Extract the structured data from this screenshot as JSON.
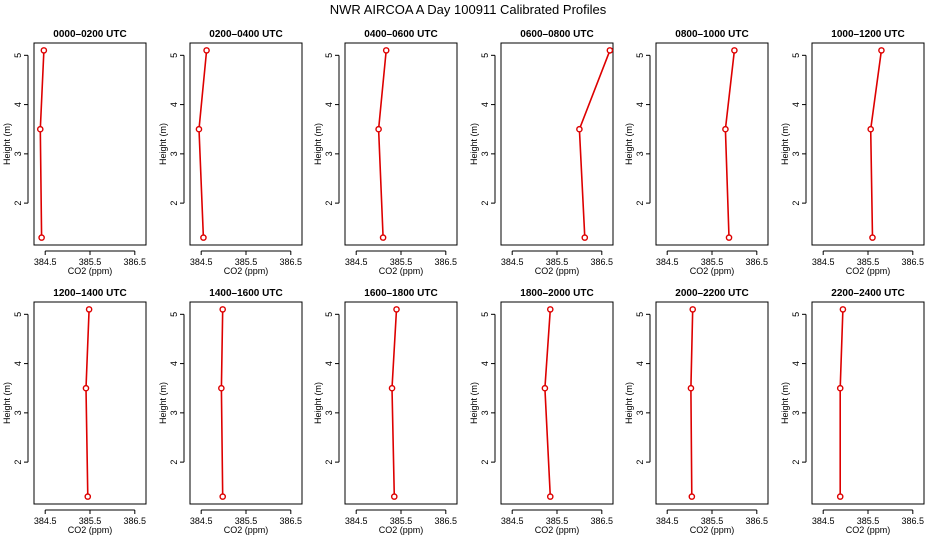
{
  "figure": {
    "title": "NWR AIRCOA A  Day 100911  Calibrated Profiles"
  },
  "style": {
    "line_color": "#dd0000",
    "point_color": "#dd0000",
    "axis_color": "#000000"
  },
  "chart_data": [
    {
      "type": "line",
      "title": "0000–0200 UTC",
      "xlabel": "CO2 (ppm)",
      "ylabel": "Height (m)",
      "xlim": [
        384.25,
        386.75
      ],
      "ylim": [
        1.15,
        5.25
      ],
      "xticks": [
        384.5,
        385.5,
        386.5
      ],
      "xtick_labels": [
        "384.5",
        "385.5",
        "386.5"
      ],
      "yticks": [
        2,
        3,
        4,
        5
      ],
      "ytick_labels": [
        "2",
        "3",
        "4",
        "5"
      ],
      "grid": false,
      "series": [
        {
          "x": [
            384.42,
            384.39,
            384.47
          ],
          "y": [
            1.3,
            3.5,
            5.1
          ]
        }
      ]
    },
    {
      "type": "line",
      "title": "0200–0400 UTC",
      "xlabel": "CO2 (ppm)",
      "ylabel": "Height (m)",
      "xlim": [
        384.25,
        386.75
      ],
      "ylim": [
        1.15,
        5.25
      ],
      "xticks": [
        384.5,
        385.5,
        386.5
      ],
      "xtick_labels": [
        "384.5",
        "385.5",
        "386.5"
      ],
      "yticks": [
        2,
        3,
        4,
        5
      ],
      "ytick_labels": [
        "2",
        "3",
        "4",
        "5"
      ],
      "grid": false,
      "series": [
        {
          "x": [
            384.55,
            384.45,
            384.62
          ],
          "y": [
            1.3,
            3.5,
            5.1
          ]
        }
      ]
    },
    {
      "type": "line",
      "title": "0400–0600 UTC",
      "xlabel": "CO2 (ppm)",
      "ylabel": "Height (m)",
      "xlim": [
        384.25,
        386.75
      ],
      "ylim": [
        1.15,
        5.25
      ],
      "xticks": [
        384.5,
        385.5,
        386.5
      ],
      "xtick_labels": [
        "384.5",
        "385.5",
        "386.5"
      ],
      "yticks": [
        2,
        3,
        4,
        5
      ],
      "ytick_labels": [
        "2",
        "3",
        "4",
        "5"
      ],
      "grid": false,
      "series": [
        {
          "x": [
            385.1,
            385.0,
            385.17
          ],
          "y": [
            1.3,
            3.5,
            5.1
          ]
        }
      ]
    },
    {
      "type": "line",
      "title": "0600–0800 UTC",
      "xlabel": "CO2 (ppm)",
      "ylabel": "Height (m)",
      "xlim": [
        384.25,
        386.75
      ],
      "ylim": [
        1.15,
        5.25
      ],
      "xticks": [
        384.5,
        385.5,
        386.5
      ],
      "xtick_labels": [
        "384.5",
        "385.5",
        "386.5"
      ],
      "yticks": [
        2,
        3,
        4,
        5
      ],
      "ytick_labels": [
        "2",
        "3",
        "4",
        "5"
      ],
      "grid": false,
      "series": [
        {
          "x": [
            386.12,
            386.0,
            386.68
          ],
          "y": [
            1.3,
            3.5,
            5.1
          ]
        }
      ]
    },
    {
      "type": "line",
      "title": "0800–1000 UTC",
      "xlabel": "CO2 (ppm)",
      "ylabel": "Height (m)",
      "xlim": [
        384.25,
        386.75
      ],
      "ylim": [
        1.15,
        5.25
      ],
      "xticks": [
        384.5,
        385.5,
        386.5
      ],
      "xtick_labels": [
        "384.5",
        "385.5",
        "386.5"
      ],
      "yticks": [
        2,
        3,
        4,
        5
      ],
      "ytick_labels": [
        "2",
        "3",
        "4",
        "5"
      ],
      "grid": false,
      "series": [
        {
          "x": [
            385.88,
            385.8,
            386.0
          ],
          "y": [
            1.3,
            3.5,
            5.1
          ]
        }
      ]
    },
    {
      "type": "line",
      "title": "1000–1200 UTC",
      "xlabel": "CO2 (ppm)",
      "ylabel": "Height (m)",
      "xlim": [
        384.25,
        386.75
      ],
      "ylim": [
        1.15,
        5.25
      ],
      "xticks": [
        384.5,
        385.5,
        386.5
      ],
      "xtick_labels": [
        "384.5",
        "385.5",
        "386.5"
      ],
      "yticks": [
        2,
        3,
        4,
        5
      ],
      "ytick_labels": [
        "2",
        "3",
        "4",
        "5"
      ],
      "grid": false,
      "series": [
        {
          "x": [
            385.6,
            385.56,
            385.8
          ],
          "y": [
            1.3,
            3.5,
            5.1
          ]
        }
      ]
    },
    {
      "type": "line",
      "title": "1200–1400 UTC",
      "xlabel": "CO2 (ppm)",
      "ylabel": "Height (m)",
      "xlim": [
        384.25,
        386.75
      ],
      "ylim": [
        1.15,
        5.25
      ],
      "xticks": [
        384.5,
        385.5,
        386.5
      ],
      "xtick_labels": [
        "384.5",
        "385.5",
        "386.5"
      ],
      "yticks": [
        2,
        3,
        4,
        5
      ],
      "ytick_labels": [
        "2",
        "3",
        "4",
        "5"
      ],
      "grid": false,
      "series": [
        {
          "x": [
            385.45,
            385.41,
            385.48
          ],
          "y": [
            1.3,
            3.5,
            5.1
          ]
        }
      ]
    },
    {
      "type": "line",
      "title": "1400–1600 UTC",
      "xlabel": "CO2 (ppm)",
      "ylabel": "Height (m)",
      "xlim": [
        384.25,
        386.75
      ],
      "ylim": [
        1.15,
        5.25
      ],
      "xticks": [
        384.5,
        385.5,
        386.5
      ],
      "xtick_labels": [
        "384.5",
        "385.5",
        "386.5"
      ],
      "yticks": [
        2,
        3,
        4,
        5
      ],
      "ytick_labels": [
        "2",
        "3",
        "4",
        "5"
      ],
      "grid": false,
      "series": [
        {
          "x": [
            384.98,
            384.95,
            384.98
          ],
          "y": [
            1.3,
            3.5,
            5.1
          ]
        }
      ]
    },
    {
      "type": "line",
      "title": "1600–1800 UTC",
      "xlabel": "CO2 (ppm)",
      "ylabel": "Height (m)",
      "xlim": [
        384.25,
        386.75
      ],
      "ylim": [
        1.15,
        5.25
      ],
      "xticks": [
        384.5,
        385.5,
        386.5
      ],
      "xtick_labels": [
        "384.5",
        "385.5",
        "386.5"
      ],
      "yticks": [
        2,
        3,
        4,
        5
      ],
      "ytick_labels": [
        "2",
        "3",
        "4",
        "5"
      ],
      "grid": false,
      "series": [
        {
          "x": [
            385.35,
            385.3,
            385.4
          ],
          "y": [
            1.3,
            3.5,
            5.1
          ]
        }
      ]
    },
    {
      "type": "line",
      "title": "1800–2000 UTC",
      "xlabel": "CO2 (ppm)",
      "ylabel": "Height (m)",
      "xlim": [
        384.25,
        386.75
      ],
      "ylim": [
        1.15,
        5.25
      ],
      "xticks": [
        384.5,
        385.5,
        386.5
      ],
      "xtick_labels": [
        "384.5",
        "385.5",
        "386.5"
      ],
      "yticks": [
        2,
        3,
        4,
        5
      ],
      "ytick_labels": [
        "2",
        "3",
        "4",
        "5"
      ],
      "grid": false,
      "series": [
        {
          "x": [
            385.35,
            385.23,
            385.35
          ],
          "y": [
            1.3,
            3.5,
            5.1
          ]
        }
      ]
    },
    {
      "type": "line",
      "title": "2000–2200 UTC",
      "xlabel": "CO2 (ppm)",
      "ylabel": "Height (m)",
      "xlim": [
        384.25,
        386.75
      ],
      "ylim": [
        1.15,
        5.25
      ],
      "xticks": [
        384.5,
        385.5,
        386.5
      ],
      "xtick_labels": [
        "384.5",
        "385.5",
        "386.5"
      ],
      "yticks": [
        2,
        3,
        4,
        5
      ],
      "ytick_labels": [
        "2",
        "3",
        "4",
        "5"
      ],
      "grid": false,
      "series": [
        {
          "x": [
            385.05,
            385.03,
            385.07
          ],
          "y": [
            1.3,
            3.5,
            5.1
          ]
        }
      ]
    },
    {
      "type": "line",
      "title": "2200–2400 UTC",
      "xlabel": "CO2 (ppm)",
      "ylabel": "Height (m)",
      "xlim": [
        384.25,
        386.75
      ],
      "ylim": [
        1.15,
        5.25
      ],
      "xticks": [
        384.5,
        385.5,
        386.5
      ],
      "xtick_labels": [
        "384.5",
        "385.5",
        "386.5"
      ],
      "yticks": [
        2,
        3,
        4,
        5
      ],
      "ytick_labels": [
        "2",
        "3",
        "4",
        "5"
      ],
      "grid": false,
      "series": [
        {
          "x": [
            384.88,
            384.88,
            384.94
          ],
          "y": [
            1.3,
            3.5,
            5.1
          ]
        }
      ]
    }
  ]
}
